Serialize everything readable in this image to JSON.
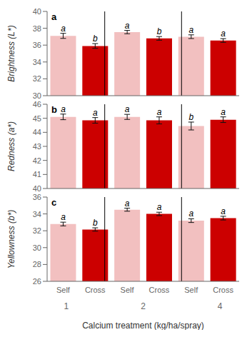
{
  "chart_data": [
    {
      "type": "bar",
      "title": "a",
      "ylabel": "Brightness (L*)",
      "ylim": [
        30,
        40
      ],
      "yticks": [
        30,
        32,
        34,
        36,
        38,
        40
      ],
      "categories": [
        null,
        null,
        null,
        null,
        null,
        null
      ],
      "values": [
        37.1,
        35.9,
        37.55,
        36.8,
        37.0,
        36.55
      ],
      "errors": [
        0.3,
        0.28,
        0.2,
        0.22,
        0.22,
        0.22
      ],
      "letters": [
        "a",
        "b",
        "a",
        "b",
        "a",
        "a"
      ],
      "colors": [
        "#f2c0c0",
        "#cc0000",
        "#f2c0c0",
        "#cc0000",
        "#f2c0c0",
        "#cc0000"
      ]
    },
    {
      "type": "bar",
      "title": "b",
      "ylabel": "Redness (a*)",
      "ylim": [
        40,
        46
      ],
      "yticks": [
        40,
        41,
        42,
        43,
        44,
        45,
        46
      ],
      "categories": [
        null,
        null,
        null,
        null,
        null,
        null
      ],
      "values": [
        45.1,
        44.85,
        45.1,
        44.85,
        44.45,
        44.9
      ],
      "errors": [
        0.2,
        0.2,
        0.18,
        0.25,
        0.28,
        0.2
      ],
      "letters": [
        "a",
        "a",
        "a",
        "a",
        "b",
        "a"
      ],
      "colors": [
        "#f2c0c0",
        "#cc0000",
        "#f2c0c0",
        "#cc0000",
        "#f2c0c0",
        "#cc0000"
      ]
    },
    {
      "type": "bar",
      "title": "c",
      "ylabel": "Yellowness (b*)",
      "ylim": [
        26,
        36
      ],
      "yticks": [
        26,
        28,
        30,
        32,
        34,
        36
      ],
      "categories": [
        "Self",
        "Cross",
        "Self",
        "Cross",
        "Self",
        "Cross"
      ],
      "group_labels": [
        "1",
        "2",
        "4"
      ],
      "xlabel": "Calcium treatment (kg/ha/spray)",
      "values": [
        32.8,
        32.15,
        34.5,
        34.0,
        33.2,
        33.5
      ],
      "errors": [
        0.22,
        0.2,
        0.18,
        0.2,
        0.22,
        0.22
      ],
      "letters": [
        "a",
        "b",
        "a",
        "a",
        "a",
        "a"
      ],
      "colors": [
        "#f2c0c0",
        "#cc0000",
        "#f2c0c0",
        "#cc0000",
        "#f2c0c0",
        "#cc0000"
      ]
    }
  ]
}
